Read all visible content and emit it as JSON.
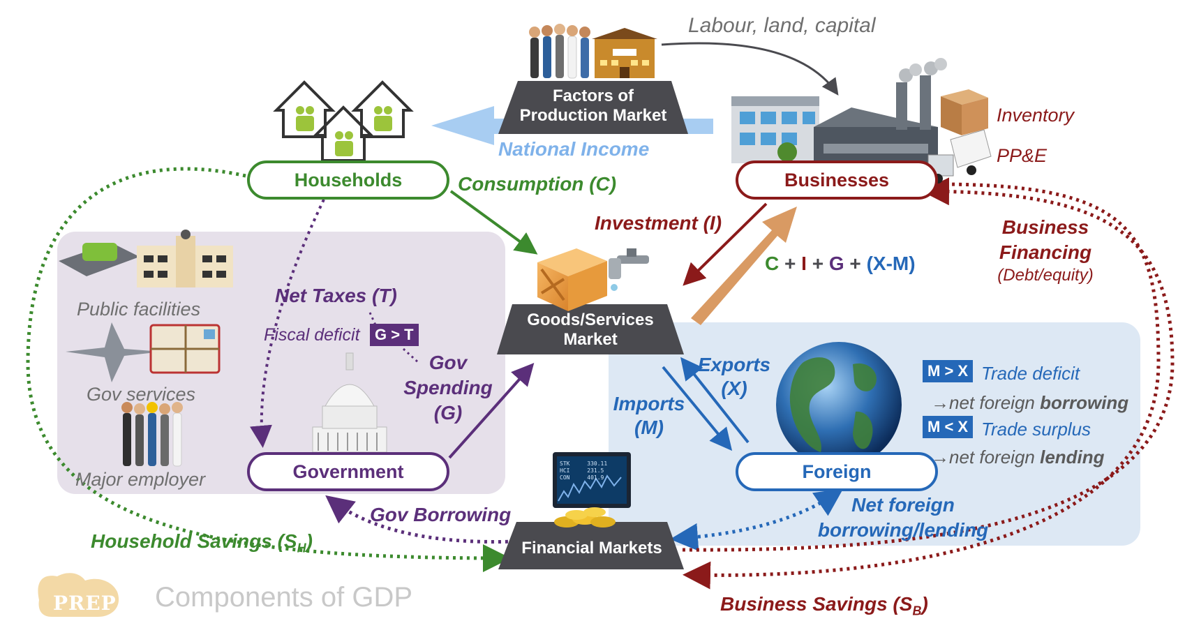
{
  "footer": {
    "brand": "PREP",
    "title": "Components of GDP"
  },
  "nodes": {
    "households": "Households",
    "businesses": "Businesses",
    "government": "Government",
    "foreign": "Foreign"
  },
  "markets": {
    "factors_line1": "Factors of",
    "factors_line2": "Production Market",
    "goods_line1": "Goods/Services",
    "goods_line2": "Market",
    "financial": "Financial Markets"
  },
  "flows": {
    "labour": "Labour, land, capital",
    "national_income": "National Income",
    "consumption": "Consumption (C)",
    "investment": "Investment (I)",
    "gdp_formula": {
      "c": "C",
      "i": "I",
      "g": "G",
      "xm": "(X-M)",
      "plus": "+"
    },
    "business_financing_1": "Business",
    "business_financing_2": "Financing",
    "business_financing_3": "(Debt/equity)",
    "net_taxes": "Net Taxes (T)",
    "fiscal_deficit": "Fiscal deficit",
    "g_gt_t": "G > T",
    "gov_spending_1": "Gov",
    "gov_spending_2": "Spending",
    "gov_spending_3": "(G)",
    "exports_1": "Exports",
    "exports_2": "(X)",
    "imports_1": "Imports",
    "imports_2": "(M)",
    "gov_borrowing": "Gov Borrowing",
    "household_savings": "Household Savings (S",
    "household_savings_sub": "H",
    "business_savings": "Business Savings (S",
    "business_savings_sub": "B",
    "net_foreign_1": "Net foreign",
    "net_foreign_2": "borrowing/lending",
    "close_paren": ")"
  },
  "business_assets": {
    "inventory": "Inventory",
    "ppe": "PP&E"
  },
  "gov_roles": {
    "public_facilities": "Public facilities",
    "gov_services": "Gov services",
    "major_employer": "Major employer"
  },
  "trade": {
    "mx_deficit_badge": "M > X",
    "deficit": "Trade deficit",
    "net_borrowing_prefix": "→net foreign ",
    "net_borrowing_bold": "borrowing",
    "mx_surplus_badge": "M < X",
    "surplus": "Trade surplus",
    "net_lending_prefix": "→net foreign ",
    "net_lending_bold": "lending"
  },
  "terminal": {
    "row1": "STK",
    "row2": "HCI",
    "row3": "CON",
    "v1": "330.11",
    "v2": "231.5",
    "v3": "401.9"
  },
  "colors": {
    "green": "#3c8a2e",
    "darkred": "#8b1a1a",
    "purple": "#5b2f7a",
    "blue": "#2568b8",
    "lightblue": "#7fb2ea",
    "tan": "#d99a63",
    "gray": "#4a4a4f",
    "gov_panel": "#e6e0ea",
    "foreign_panel": "#dde8f4"
  }
}
